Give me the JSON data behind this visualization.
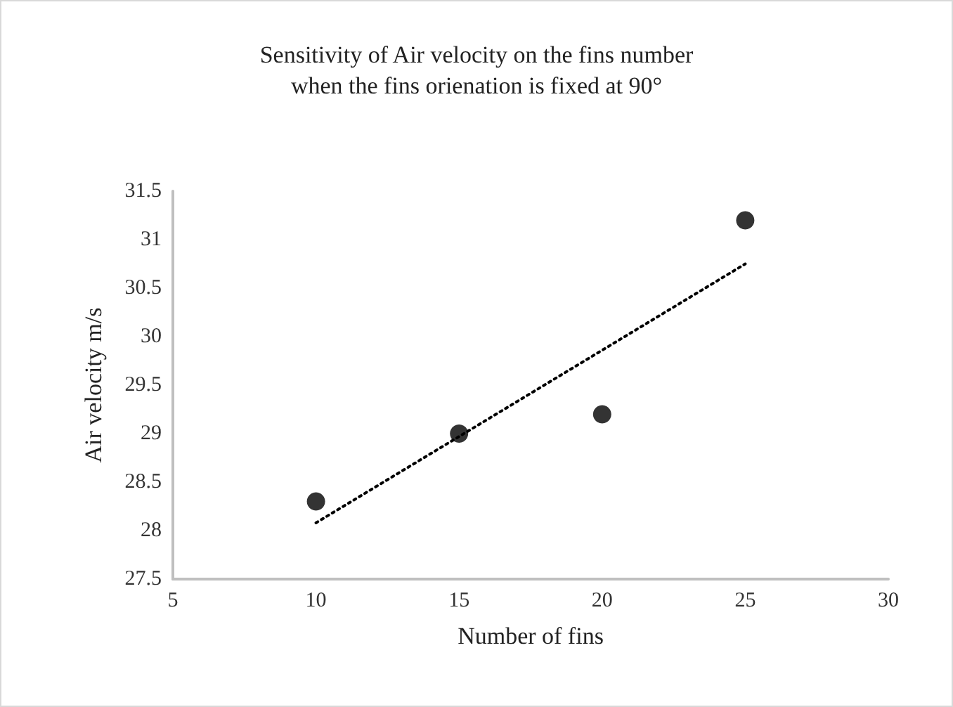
{
  "chart_data": {
    "type": "scatter",
    "title": "Sensitivity of Air velocity on the fins number\nwhen the fins orienation is fixed at 90°",
    "xlabel": "Number of fins",
    "ylabel": "Air velocity m/s",
    "series": [
      {
        "type": "scatter",
        "color": "#000000",
        "marker": "circle",
        "x": [
          10,
          15,
          20,
          25
        ],
        "values": [
          28.3,
          29.0,
          29.2,
          31.2
        ]
      },
      {
        "type": "line",
        "color": "#000000",
        "line_style": "dotted",
        "marker": "none",
        "x": [
          10,
          25
        ],
        "values": [
          28.08,
          30.75
        ]
      }
    ],
    "xlim": [
      5,
      30
    ],
    "xticks": [
      5,
      10,
      15,
      20,
      25,
      30
    ],
    "ylim": [
      27.5,
      31.5
    ],
    "yticks": [
      27.5,
      28,
      28.5,
      29,
      29.5,
      30,
      30.5,
      31,
      31.5
    ],
    "grid": false
  }
}
